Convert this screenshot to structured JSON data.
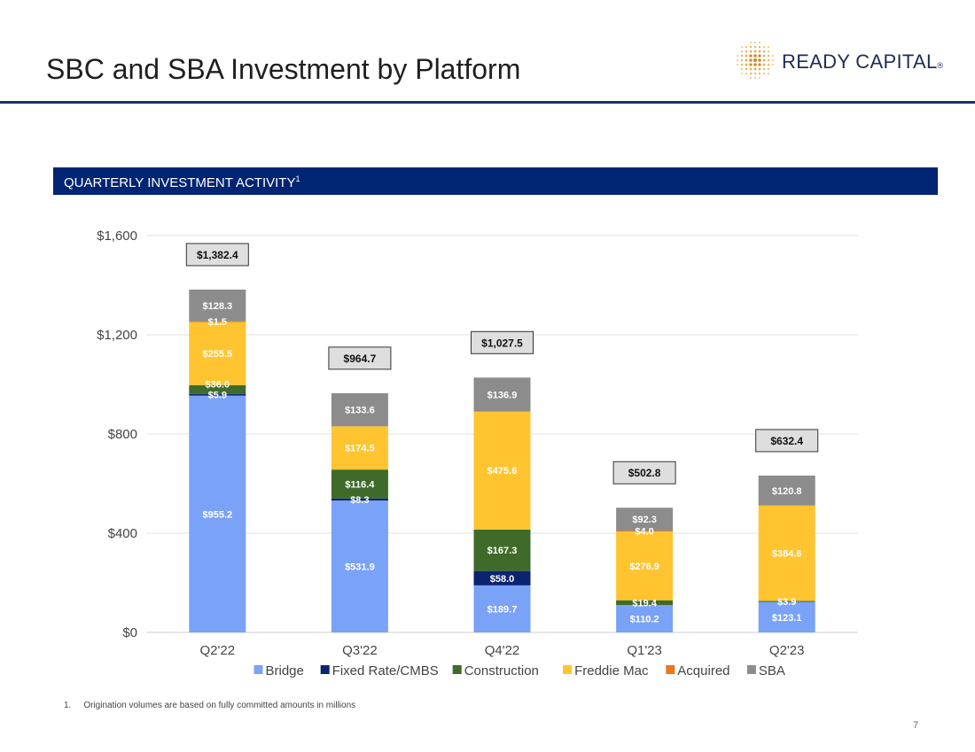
{
  "header": {
    "title": "SBC and SBA Investment by Platform",
    "logo_text": "READY CAPITAL",
    "logo_mark": "®"
  },
  "section": {
    "label": "QUARTERLY INVESTMENT ACTIVITY",
    "superscript": "1"
  },
  "footnote": {
    "number": "1.",
    "text": "Origination volumes are based on fully committed amounts in millions"
  },
  "page_number": "7",
  "colors": {
    "accent_navy": "#002673",
    "rule": "#1c3166"
  },
  "chart_data": {
    "type": "bar",
    "stacked": true,
    "categories": [
      "Q2'22",
      "Q3'22",
      "Q4'22",
      "Q1'23",
      "Q2'23"
    ],
    "ylim": [
      0,
      1600
    ],
    "yticks": [
      0,
      400,
      800,
      1200,
      1600
    ],
    "ytick_labels": [
      "$0",
      "$400",
      "$800",
      "$1,200",
      "$1,600"
    ],
    "grid": true,
    "legend_position": "bottom",
    "series": [
      {
        "name": "Bridge",
        "color": "#7aa2f7",
        "values": [
          955.2,
          531.9,
          189.7,
          110.2,
          123.1
        ],
        "labels": [
          "$955.2",
          "$531.9",
          "$189.7",
          "$110.2",
          "$123.1"
        ]
      },
      {
        "name": "Fixed Rate/CMBS",
        "color": "#0a2470",
        "values": [
          5.9,
          8.3,
          58.0,
          0,
          0
        ],
        "labels": [
          "$5.9",
          "$8.3",
          "$58.0",
          "",
          ""
        ]
      },
      {
        "name": "Construction",
        "color": "#3e6b2a",
        "values": [
          36.0,
          116.4,
          167.3,
          19.4,
          3.9
        ],
        "labels": [
          "$36.0",
          "$116.4",
          "$167.3",
          "$19.4",
          "$3.9"
        ]
      },
      {
        "name": "Freddie Mac",
        "color": "#ffc430",
        "values": [
          255.5,
          174.5,
          475.6,
          276.9,
          384.6
        ],
        "labels": [
          "$255.5",
          "$174.5",
          "$475.6",
          "$276.9",
          "$384.6"
        ]
      },
      {
        "name": "Acquired",
        "color": "#e8781d",
        "values": [
          1.5,
          0,
          0,
          4.0,
          0
        ],
        "labels": [
          "$1.5",
          "",
          "",
          "$4.0",
          ""
        ]
      },
      {
        "name": "SBA",
        "color": "#8c8c8c",
        "values": [
          128.3,
          133.6,
          136.9,
          92.3,
          120.8
        ],
        "labels": [
          "$128.3",
          "$133.6",
          "$136.9",
          "$92.3",
          "$120.8"
        ]
      }
    ],
    "totals": [
      1382.4,
      964.7,
      1027.5,
      502.8,
      632.4
    ],
    "total_labels": [
      "$1,382.4",
      "$964.7",
      "$1,027.5",
      "$502.8",
      "$632.4"
    ]
  }
}
